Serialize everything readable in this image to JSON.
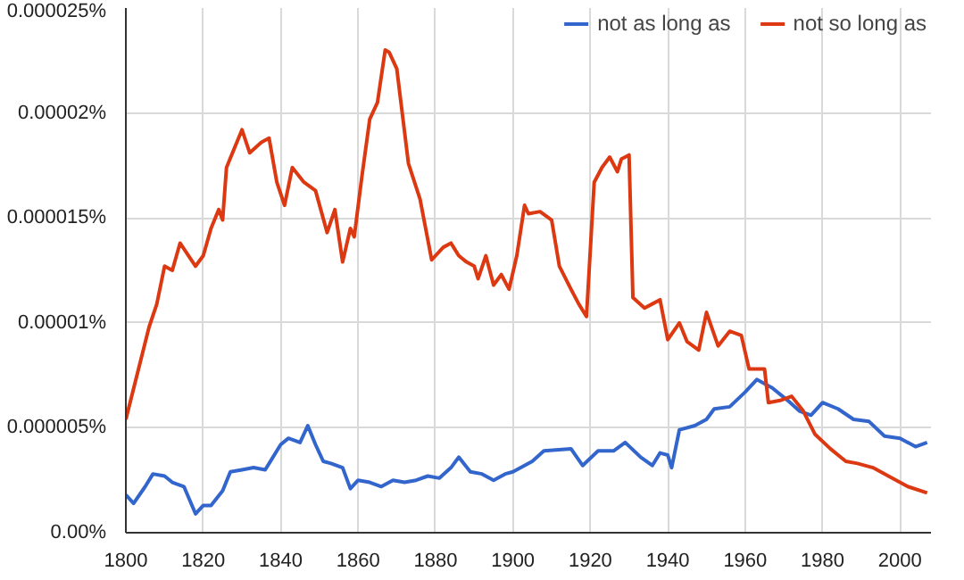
{
  "chart_data": {
    "type": "line",
    "legend": "top right",
    "grid": true,
    "marker": "none",
    "line_style": "solid",
    "xlim": [
      1800,
      2008
    ],
    "xticks": [
      1800,
      1820,
      1840,
      1860,
      1880,
      1900,
      1920,
      1940,
      1960,
      1980,
      2000
    ],
    "ylim": [
      0,
      2.5e-05
    ],
    "yticks": [
      {
        "value": 0,
        "label": "0.00%"
      },
      {
        "value": 5e-06,
        "label": "0.000005%"
      },
      {
        "value": 1e-05,
        "label": "0.00001%"
      },
      {
        "value": 1.5e-05,
        "label": "0.000015%"
      },
      {
        "value": 2e-05,
        "label": "0.00002%"
      },
      {
        "value": 2.5e-05,
        "label": "0.000025%"
      }
    ],
    "series": [
      {
        "name": "not as long as",
        "color": "#3366cc",
        "x": [
          1800,
          1802,
          1805,
          1807,
          1810,
          1812,
          1815,
          1818,
          1820,
          1822,
          1825,
          1827,
          1830,
          1833,
          1836,
          1838,
          1840,
          1842,
          1845,
          1847,
          1849,
          1851,
          1853,
          1856,
          1858,
          1860,
          1863,
          1866,
          1869,
          1872,
          1875,
          1878,
          1881,
          1884,
          1886,
          1889,
          1892,
          1895,
          1898,
          1900,
          1905,
          1908,
          1915,
          1918,
          1922,
          1926,
          1929,
          1933,
          1936,
          1938,
          1940,
          1941,
          1943,
          1947,
          1950,
          1952,
          1956,
          1960,
          1963,
          1965,
          1967,
          1971,
          1974,
          1977,
          1980,
          1984,
          1988,
          1992,
          1996,
          2000,
          2004,
          2007
        ],
        "values": [
          1.8e-06,
          1.4e-06,
          2.2e-06,
          2.8e-06,
          2.7e-06,
          2.4e-06,
          2.2e-06,
          9e-07,
          1.3e-06,
          1.3e-06,
          2e-06,
          2.9e-06,
          3e-06,
          3.1e-06,
          3e-06,
          3.6e-06,
          4.2e-06,
          4.5e-06,
          4.3e-06,
          5.1e-06,
          4.2e-06,
          3.4e-06,
          3.3e-06,
          3.1e-06,
          2.1e-06,
          2.5e-06,
          2.4e-06,
          2.2e-06,
          2.5e-06,
          2.4e-06,
          2.5e-06,
          2.7e-06,
          2.6e-06,
          3.1e-06,
          3.6e-06,
          2.9e-06,
          2.8e-06,
          2.5e-06,
          2.8e-06,
          2.9e-06,
          3.4e-06,
          3.9e-06,
          4e-06,
          3.2e-06,
          3.9e-06,
          3.9e-06,
          4.3e-06,
          3.6e-06,
          3.2e-06,
          3.8e-06,
          3.7e-06,
          3.1e-06,
          4.9e-06,
          5.1e-06,
          5.4e-06,
          5.9e-06,
          6e-06,
          6.7e-06,
          7.3e-06,
          7.1e-06,
          6.9e-06,
          6.3e-06,
          5.8e-06,
          5.6e-06,
          6.2e-06,
          5.9e-06,
          5.4e-06,
          5.3e-06,
          4.6e-06,
          4.5e-06,
          4.1e-06,
          4.3e-06
        ]
      },
      {
        "name": "not so long as",
        "color": "#dc3912",
        "x": [
          1800,
          1803,
          1806,
          1808,
          1810,
          1812,
          1814,
          1818,
          1820,
          1822,
          1824,
          1825,
          1826,
          1830,
          1832,
          1835,
          1837,
          1839,
          1841,
          1843,
          1846,
          1849,
          1852,
          1854,
          1856,
          1858,
          1859,
          1861,
          1863,
          1865,
          1867,
          1868,
          1870,
          1873,
          1876,
          1879,
          1882,
          1884,
          1886,
          1888,
          1890,
          1891,
          1893,
          1895,
          1897,
          1899,
          1901,
          1903,
          1904,
          1907,
          1910,
          1912,
          1915,
          1917,
          1919,
          1921,
          1923,
          1925,
          1927,
          1928,
          1930,
          1931,
          1934,
          1936,
          1938,
          1940,
          1943,
          1945,
          1948,
          1950,
          1953,
          1956,
          1959,
          1961,
          1965,
          1966,
          1969,
          1972,
          1975,
          1978,
          1982,
          1986,
          1989,
          1993,
          1997,
          2002,
          2007
        ],
        "values": [
          5.4e-06,
          7.6e-06,
          9.8e-06,
          1.09e-05,
          1.27e-05,
          1.25e-05,
          1.38e-05,
          1.27e-05,
          1.32e-05,
          1.45e-05,
          1.54e-05,
          1.49e-05,
          1.74e-05,
          1.92e-05,
          1.81e-05,
          1.86e-05,
          1.88e-05,
          1.67e-05,
          1.56e-05,
          1.74e-05,
          1.67e-05,
          1.63e-05,
          1.43e-05,
          1.54e-05,
          1.29e-05,
          1.45e-05,
          1.41e-05,
          1.7e-05,
          1.97e-05,
          2.05e-05,
          2.3e-05,
          2.29e-05,
          2.21e-05,
          1.76e-05,
          1.59e-05,
          1.3e-05,
          1.36e-05,
          1.38e-05,
          1.32e-05,
          1.29e-05,
          1.27e-05,
          1.21e-05,
          1.32e-05,
          1.18e-05,
          1.23e-05,
          1.16e-05,
          1.32e-05,
          1.56e-05,
          1.52e-05,
          1.53e-05,
          1.49e-05,
          1.27e-05,
          1.16e-05,
          1.09e-05,
          1.03e-05,
          1.67e-05,
          1.74e-05,
          1.79e-05,
          1.72e-05,
          1.78e-05,
          1.8e-05,
          1.12e-05,
          1.07e-05,
          1.09e-05,
          1.11e-05,
          9.2e-06,
          1e-05,
          9.1e-06,
          8.7e-06,
          1.05e-05,
          8.9e-06,
          9.6e-06,
          9.4e-06,
          7.8e-06,
          7.8e-06,
          6.2e-06,
          6.3e-06,
          6.5e-06,
          5.8e-06,
          4.7e-06,
          4e-06,
          3.4e-06,
          3.3e-06,
          3.1e-06,
          2.7e-06,
          2.2e-06,
          1.9e-06
        ]
      }
    ]
  }
}
